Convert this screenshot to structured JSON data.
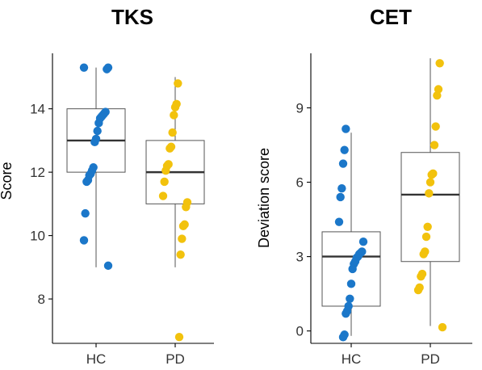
{
  "chart_data": [
    {
      "type": "box",
      "title": "TKS",
      "xlabel": "",
      "ylabel": "Score",
      "ylim": [
        6.6,
        15.75
      ],
      "yticks": [
        8,
        10,
        12,
        14
      ],
      "categories": [
        "HC",
        "PD"
      ],
      "colors": {
        "HC": "#1b77c9",
        "PD": "#f2c20d"
      },
      "boxes": [
        {
          "category": "HC",
          "q1": 12,
          "median": 13,
          "q3": 14,
          "whisker_low": 9,
          "whisker_high": 15.3
        },
        {
          "category": "PD",
          "q1": 11,
          "median": 12,
          "q3": 13,
          "whisker_low": 9,
          "whisker_high": 15
        }
      ],
      "points": [
        {
          "category": "HC",
          "values": [
            15.3,
            15.3,
            15.25,
            13.9,
            13.85,
            13.8,
            13.75,
            13.7,
            13.55,
            13.3,
            13.05,
            12.95,
            12.15,
            12.05,
            11.95,
            11.9,
            11.75,
            11.7,
            10.7,
            9.85,
            9.05
          ]
        },
        {
          "category": "PD",
          "values": [
            14.8,
            14.15,
            14.05,
            13.8,
            13.25,
            12.8,
            12.75,
            12.25,
            12.2,
            12.05,
            11.7,
            11.25,
            11.05,
            10.9,
            10.35,
            10.3,
            9.9,
            9.4,
            6.8
          ]
        }
      ]
    },
    {
      "type": "box",
      "title": "CET",
      "xlabel": "",
      "ylabel": "Deviation score",
      "ylim": [
        -0.5,
        11.2
      ],
      "yticks": [
        0,
        3,
        6,
        9
      ],
      "categories": [
        "HC",
        "PD"
      ],
      "colors": {
        "HC": "#1b77c9",
        "PD": "#f2c20d"
      },
      "boxes": [
        {
          "category": "HC",
          "q1": 1,
          "median": 3,
          "q3": 4,
          "whisker_low": -0.2,
          "whisker_high": 8
        },
        {
          "category": "PD",
          "q1": 2.8,
          "median": 5.5,
          "q3": 7.2,
          "whisker_low": 0.2,
          "whisker_high": 11
        }
      ],
      "points": [
        {
          "category": "HC",
          "values": [
            8.15,
            7.3,
            6.75,
            5.75,
            5.4,
            4.4,
            3.6,
            3.2,
            3.15,
            3.1,
            3.0,
            2.95,
            2.8,
            2.7,
            2.5,
            1.9,
            1.3,
            1.0,
            0.8,
            0.7,
            -0.15,
            -0.25
          ]
        },
        {
          "category": "PD",
          "values": [
            10.8,
            9.75,
            9.5,
            8.25,
            7.5,
            6.35,
            6.3,
            6.0,
            5.55,
            4.2,
            3.8,
            3.2,
            3.1,
            2.3,
            2.2,
            1.75,
            1.65,
            0.15
          ]
        }
      ]
    }
  ]
}
